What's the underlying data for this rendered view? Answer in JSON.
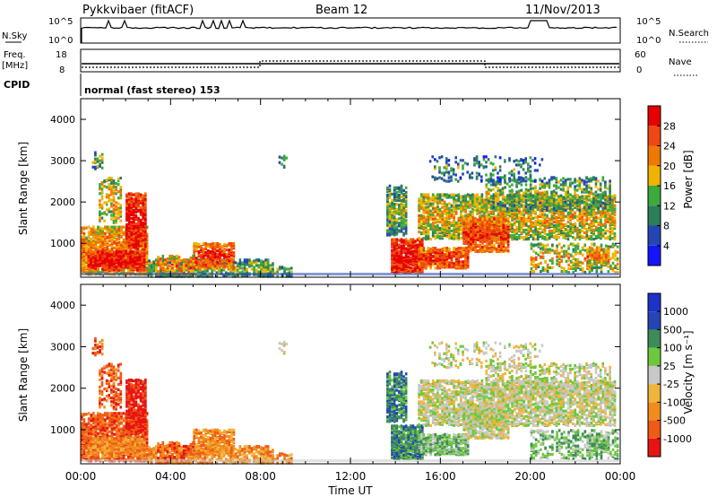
{
  "header": {
    "title": "Pykkvibaer (fitACF)",
    "beam": "Beam 12",
    "date": "11/Nov/2013"
  },
  "status_panel": {
    "nsky_label": "N.Sky",
    "nsky_ticks": [
      "10^5",
      "10^0"
    ],
    "nsearch_label": "N.Search",
    "nsearch_ticks": [
      "10^5",
      "10^0"
    ],
    "freq_label": "Freq.",
    "freq_unit": "[MHz]",
    "freq_ticks": [
      "18",
      "8"
    ],
    "nave_label": "Nave",
    "nave_ticks": [
      "60",
      "0"
    ],
    "cpid_label": "CPID",
    "mode_text": "normal (fast stereo) 153"
  },
  "colors": {
    "power_scale": [
      "#1414ff",
      "#2346b4",
      "#2d7d5a",
      "#3caa3c",
      "#f0b400",
      "#f07800",
      "#f04614",
      "#e60000"
    ],
    "velocity_scale": [
      "#e61414",
      "#f05a14",
      "#f08c1e",
      "#f0b43c",
      "#c8c8c8",
      "#6ec83c",
      "#3c8c5a",
      "#2346b4",
      "#1e32c8"
    ]
  },
  "chart_data": [
    {
      "type": "heatmap",
      "name": "power",
      "xlabel": "",
      "ylabel": "Slant Range [km]",
      "xlim": [
        0,
        24
      ],
      "ylim": [
        180,
        4500
      ],
      "y_ticks": [
        "1000",
        "2000",
        "3000",
        "4000"
      ],
      "colorbar_label": "Power [dB]",
      "colorbar_ticks": [
        "4",
        "8",
        "12",
        "16",
        "20",
        "24",
        "28"
      ],
      "colorbar_range": [
        0,
        32
      ]
    },
    {
      "type": "heatmap",
      "name": "velocity",
      "xlabel": "Time UT",
      "ylabel": "Slant Range [km]",
      "xlim": [
        0,
        24
      ],
      "ylim": [
        180,
        4500
      ],
      "x_ticks": [
        "00:00",
        "04:00",
        "08:00",
        "12:00",
        "16:00",
        "20:00",
        "00:00"
      ],
      "y_ticks": [
        "1000",
        "2000",
        "3000",
        "4000"
      ],
      "colorbar_label": "Velocity [m s⁻¹]",
      "colorbar_ticks": [
        "1000",
        "500",
        "100",
        "25",
        "-25",
        "-100",
        "-500",
        "-1000"
      ]
    }
  ]
}
